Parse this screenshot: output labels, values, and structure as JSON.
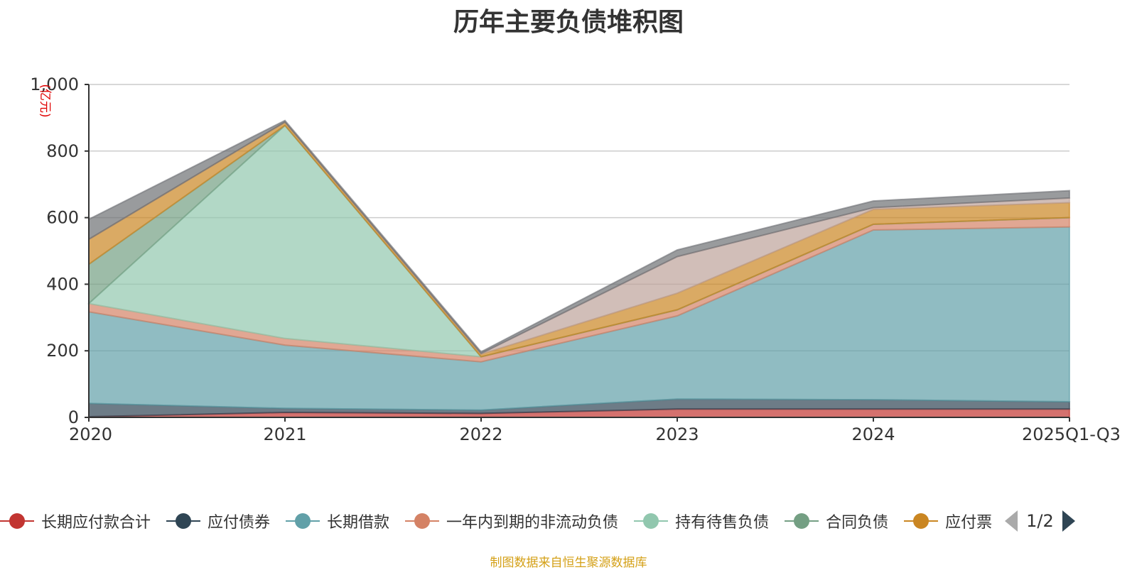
{
  "title": "历年主要负债堆积图",
  "source_note": "制图数据来自恒生聚源数据库",
  "legend_page": "1/2",
  "chart_data": {
    "type": "area",
    "stacked": true,
    "title": "历年主要负债堆积图",
    "ylabel": "(亿元)",
    "ylim": [
      0,
      1000
    ],
    "yticks": [
      0,
      200,
      400,
      600,
      800,
      1000
    ],
    "ytick_labels": [
      "0",
      "200",
      "400",
      "600",
      "800",
      "1,000"
    ],
    "categories": [
      "2020",
      "2021",
      "2022",
      "2023",
      "2024",
      "2025Q1-Q3"
    ],
    "grid": true,
    "legend_position": "bottom",
    "series": [
      {
        "name": "长期应付款合计",
        "color": "#c23531",
        "values": [
          2,
          15,
          12,
          25,
          25,
          25
        ]
      },
      {
        "name": "应付债券",
        "color": "#2f4554",
        "values": [
          40,
          12,
          10,
          30,
          28,
          22
        ]
      },
      {
        "name": "长期借款",
        "color": "#61a0a8",
        "values": [
          275,
          190,
          145,
          250,
          510,
          525
        ]
      },
      {
        "name": "一年内到期的非流动负债",
        "color": "#d48265",
        "values": [
          25,
          20,
          15,
          18,
          17,
          28
        ]
      },
      {
        "name": "持有待售负债",
        "color": "#91c7ae",
        "values": [
          0,
          640,
          0,
          0,
          0,
          0
        ]
      },
      {
        "name": "合同负债",
        "color": "#749f83",
        "values": [
          118,
          0,
          0,
          0,
          0,
          0
        ]
      },
      {
        "name": "应付票",
        "color": "#ca8622",
        "values": [
          75,
          10,
          8,
          50,
          45,
          45
        ]
      },
      {
        "name": "",
        "color": "#bda29a",
        "values": [
          0,
          0,
          2,
          110,
          5,
          14
        ]
      },
      {
        "name": "",
        "color": "#6e7074",
        "values": [
          60,
          5,
          5,
          20,
          20,
          22
        ]
      }
    ]
  }
}
